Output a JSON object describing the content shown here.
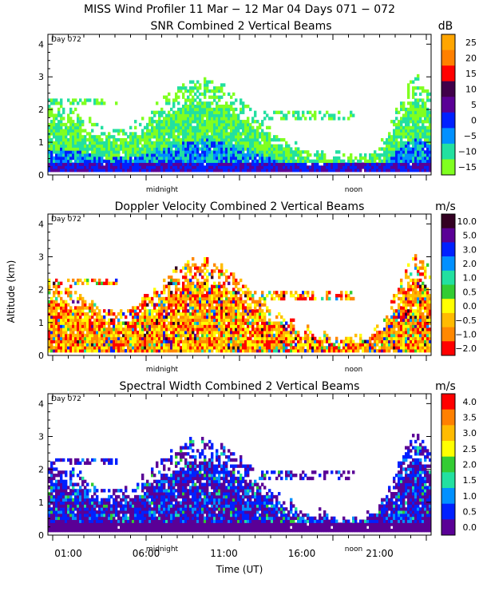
{
  "title": "MISS Wind Profiler  11 Mar − 12 Mar 04 Days 071 − 072",
  "ylabel": "Altitude (km)",
  "xlabel": "Time (UT)",
  "day_label": "Day 072",
  "midnight_label": "midnight",
  "noon_label": "noon",
  "time_ticks": [
    "01:00",
    "06:00",
    "11:00",
    "16:00",
    "21:00"
  ],
  "chart_data": [
    {
      "type": "heatmap",
      "title": "SNR Combined 2 Vertical Beams",
      "unit": "dB",
      "x": "Time (UT)",
      "ylim": [
        0,
        4.3
      ],
      "yticks": [
        "0",
        "1",
        "2",
        "3",
        "4"
      ],
      "colorbar": {
        "labels": [
          "25",
          "20",
          "15",
          "10",
          "5",
          "0",
          "−5",
          "−10",
          "−15"
        ],
        "colors": [
          "#ffa500",
          "#ff8000",
          "#ff0000",
          "#40004a",
          "#5a0096",
          "#0020ff",
          "#0090ff",
          "#22e0a0",
          "#80ff20"
        ]
      }
    },
    {
      "type": "heatmap",
      "title": "Doppler Velocity Combined 2 Vertical Beams",
      "unit": "m/s",
      "x": "Time (UT)",
      "ylim": [
        0,
        4.3
      ],
      "yticks": [
        "0",
        "1",
        "2",
        "3",
        "4"
      ],
      "colorbar": {
        "labels": [
          "10.0",
          "5.0",
          "3.0",
          "2.0",
          "1.0",
          "0.5",
          "0.0",
          "−0.5",
          "−1.0",
          "−2.0"
        ],
        "colors": [
          "#330022",
          "#5a0096",
          "#0020ff",
          "#0090ff",
          "#22e0a0",
          "#33cc33",
          "#ffff00",
          "#ffbb00",
          "#ff8800",
          "#ff0000"
        ]
      }
    },
    {
      "type": "heatmap",
      "title": "Spectral Width Combined 2 Vertical Beams",
      "unit": "m/s",
      "x": "Time (UT)",
      "ylim": [
        0,
        4.3
      ],
      "yticks": [
        "0",
        "1",
        "2",
        "3",
        "4"
      ],
      "colorbar": {
        "labels": [
          "4.0",
          "3.5",
          "3.0",
          "2.5",
          "2.0",
          "1.5",
          "1.0",
          "0.5",
          "0.0"
        ],
        "colors": [
          "#ff0000",
          "#ff8000",
          "#ffbb00",
          "#ffff00",
          "#33cc33",
          "#22e0a0",
          "#0090ff",
          "#0020ff",
          "#5a0096"
        ]
      }
    }
  ]
}
